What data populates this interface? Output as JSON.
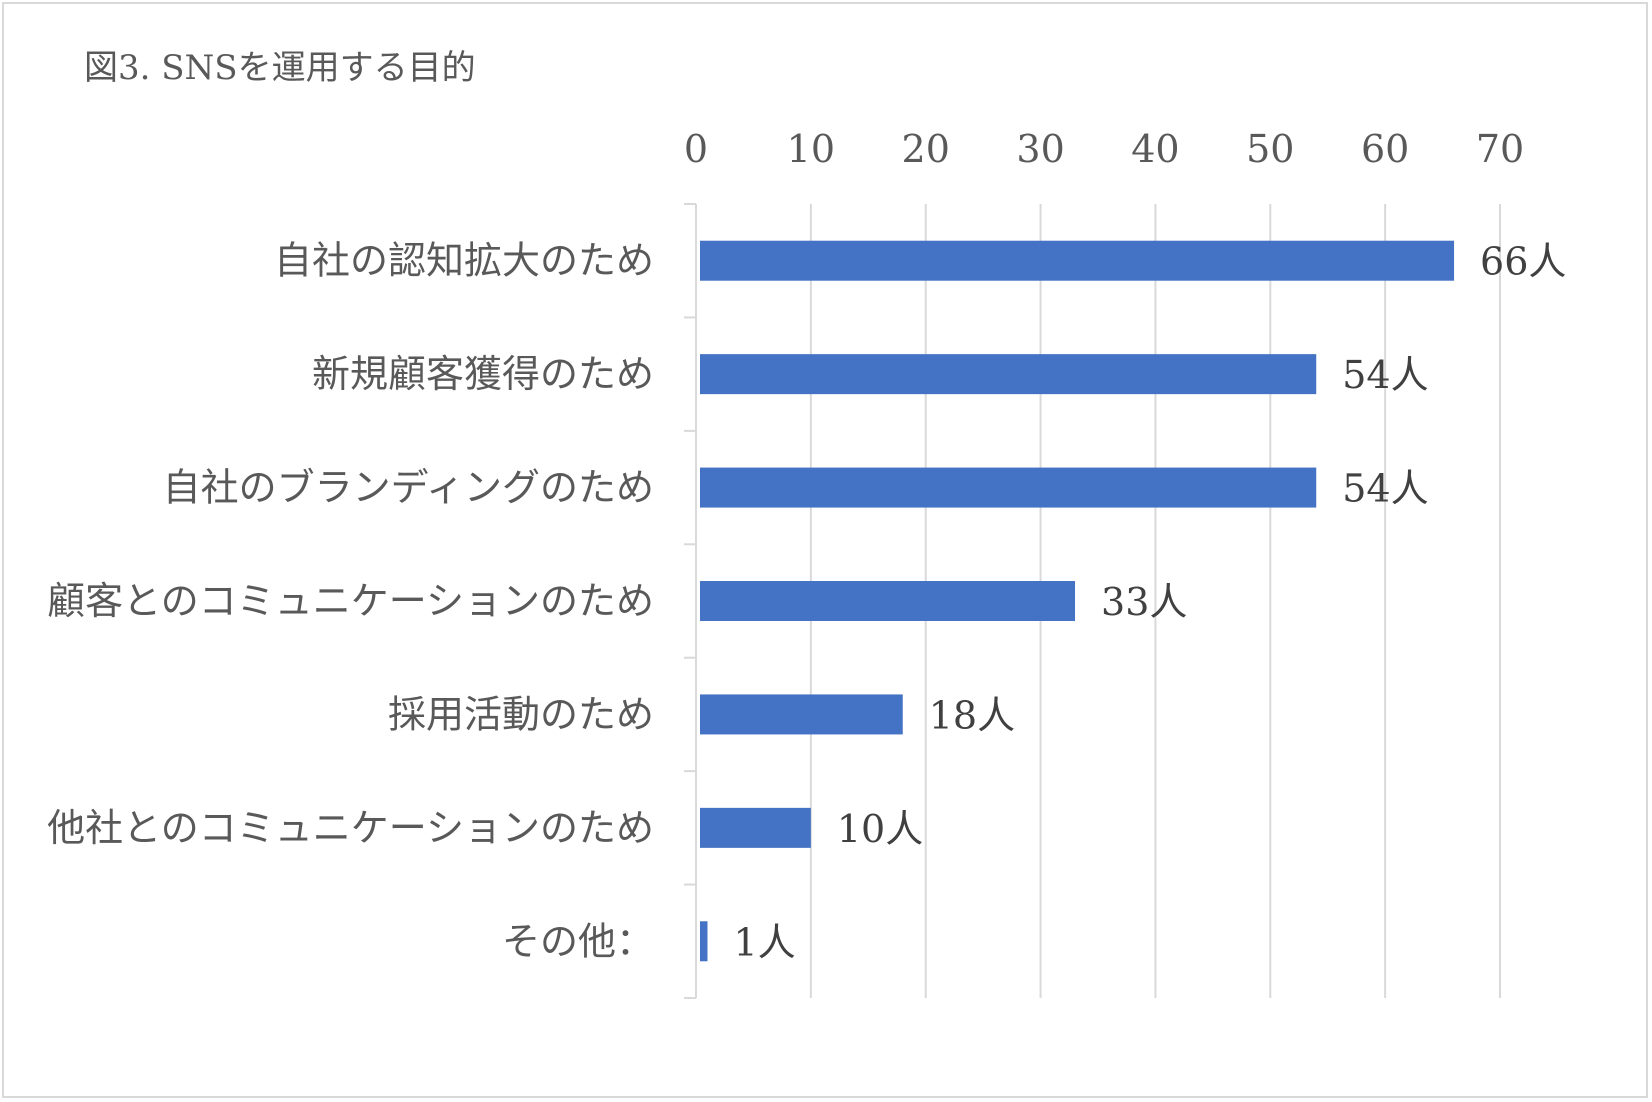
{
  "chart_data": {
    "type": "bar",
    "orientation": "horizontal",
    "title": "図3. SNSを運用する目的",
    "categories": [
      "自社の認知拡大のため",
      "新規顧客獲得のため",
      "自社のブランディングのため",
      "顧客とのコミュニケーションのため",
      "採用活動のため",
      "他社とのコミュニケーションのため",
      "その他："
    ],
    "values": [
      66,
      54,
      54,
      33,
      18,
      10,
      1
    ],
    "data_labels": [
      "66人",
      "54人",
      "54人",
      "33人",
      "18人",
      "10人",
      "1人"
    ],
    "x_ticks": [
      "0",
      "10",
      "20",
      "30",
      "40",
      "50",
      "60",
      "70"
    ],
    "xlim": [
      0,
      70
    ],
    "xaxis_position": "top",
    "grid": true,
    "legend": "none",
    "bar_color": "#4472C4",
    "xlabel": "",
    "ylabel": ""
  }
}
